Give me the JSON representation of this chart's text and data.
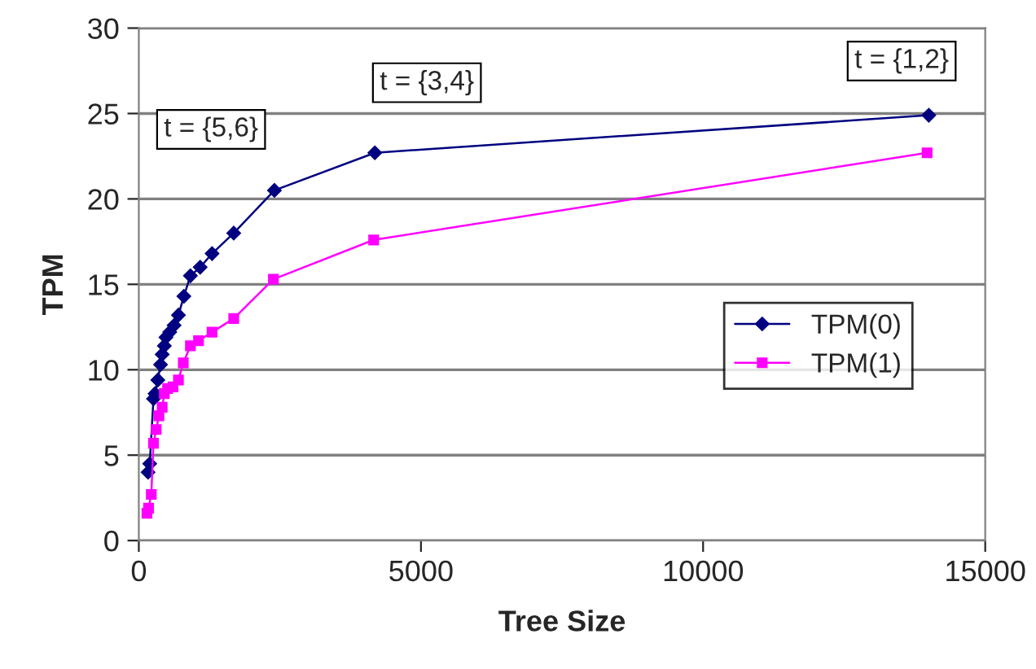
{
  "chart_data": {
    "type": "line",
    "xlabel": "Tree Size",
    "ylabel": "TPM",
    "xlim": [
      0,
      15000
    ],
    "xticks": [
      0,
      5000,
      10000,
      15000
    ],
    "ylim": [
      0,
      30
    ],
    "yticks": [
      0,
      5,
      10,
      15,
      20,
      25,
      30
    ],
    "grid": "y",
    "legend": "center right",
    "series": [
      {
        "name": "TPM(0)",
        "color": "#000080",
        "marker": "diamond",
        "x": [
          164,
          193,
          260,
          288,
          337,
          385,
          414,
          452,
          481,
          548,
          625,
          702,
          798,
          914,
          1087,
          1298,
          1682,
          2403,
          4183,
          14000
        ],
        "values": [
          4.0,
          4.5,
          8.3,
          8.6,
          9.4,
          10.3,
          10.9,
          11.4,
          11.9,
          12.2,
          12.6,
          13.2,
          14.3,
          15.5,
          16.0,
          16.8,
          18.0,
          20.5,
          22.7,
          24.9
        ]
      },
      {
        "name": "TPM(1)",
        "color": "#ff00ff",
        "marker": "square",
        "x": [
          144,
          173,
          221,
          260,
          308,
          356,
          414,
          452,
          510,
          606,
          702,
          788,
          914,
          1058,
          1298,
          1682,
          2385,
          4162,
          13970
        ],
        "values": [
          1.6,
          1.9,
          2.7,
          5.7,
          6.5,
          7.3,
          7.8,
          8.6,
          8.9,
          9.0,
          9.4,
          10.4,
          11.4,
          11.7,
          12.2,
          13.0,
          15.3,
          17.6,
          22.7
        ]
      }
    ],
    "annotations": [
      {
        "text": "t = {1,2}",
        "x": 14000,
        "y": 24.9
      },
      {
        "text": "t = {3,4}",
        "x": 4183,
        "y": 22.7
      },
      {
        "text": "t = {5,6}",
        "x": 2403,
        "y": 20.5
      }
    ]
  }
}
